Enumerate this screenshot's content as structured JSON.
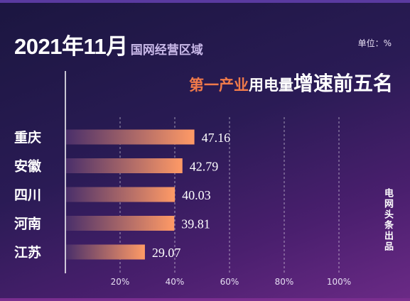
{
  "header": {
    "title_main": "2021年11月",
    "title_region": "国网经营区域",
    "unit": "单位：%",
    "subtitle_part1": "第一产业",
    "subtitle_part2": "用电量",
    "subtitle_part3": "增速前五名"
  },
  "credit": "电网头条出品",
  "colors": {
    "bar_start": "#4a2f6a",
    "bar_end": "#ff9a66",
    "accent": "#f07a4a",
    "grid": "#ffffff"
  },
  "chart_data": {
    "type": "bar",
    "orientation": "horizontal",
    "categories": [
      "重庆",
      "安徽",
      "四川",
      "河南",
      "江苏"
    ],
    "values": [
      47.16,
      42.79,
      40.03,
      39.81,
      29.07
    ],
    "value_labels": [
      "47.16",
      "42.79",
      "40.03",
      "39.81",
      "29.07"
    ],
    "x_ticks": [
      20,
      40,
      60,
      80,
      100
    ],
    "x_tick_labels": [
      "20%",
      "40%",
      "60%",
      "80%",
      "100%"
    ],
    "xlim": [
      0,
      100
    ],
    "grid": true,
    "grid_style": "dashed-vertical"
  }
}
